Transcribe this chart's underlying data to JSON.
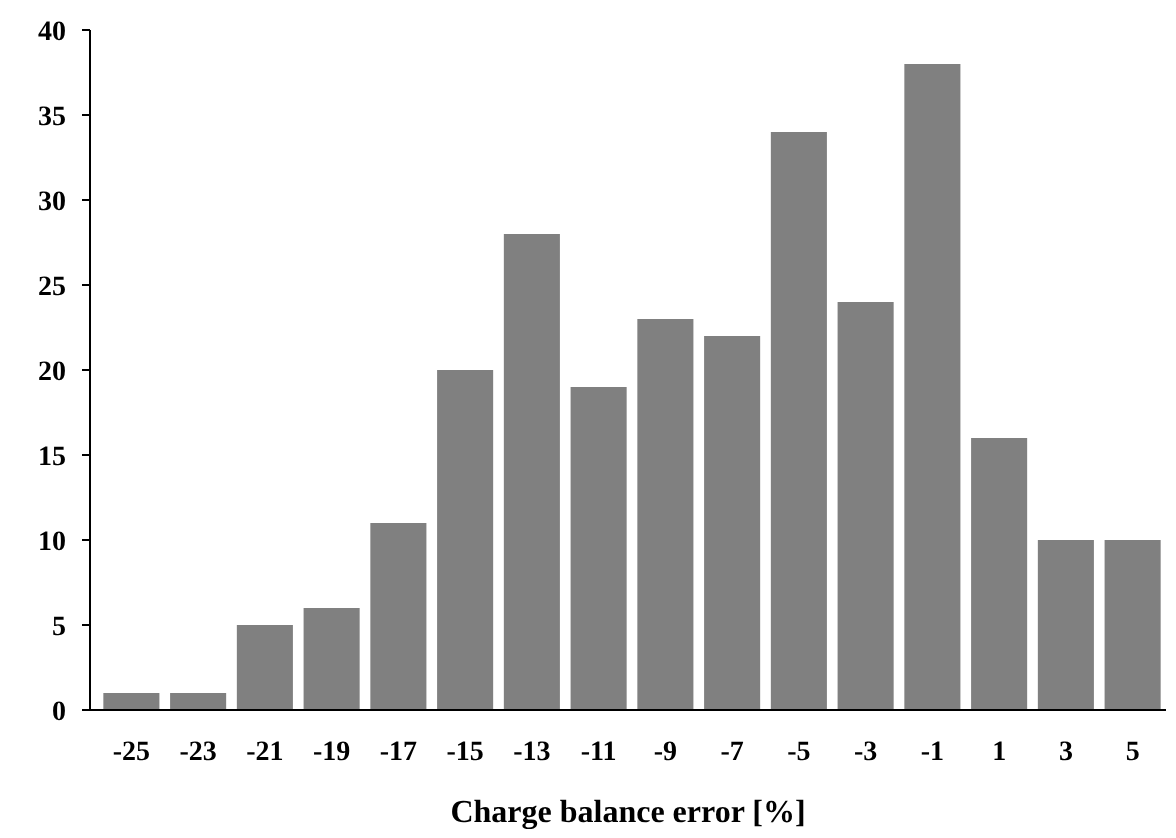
{
  "chart_data": {
    "type": "bar",
    "xlabel": "Charge balance error [%]",
    "categories": [
      "-25",
      "-23",
      "-21",
      "-19",
      "-17",
      "-15",
      "-13",
      "-11",
      "-9",
      "-7",
      "-5",
      "-3",
      "-1",
      "1",
      "3",
      "5"
    ],
    "values": [
      1,
      1,
      5,
      6,
      11,
      20,
      28,
      19,
      23,
      22,
      34,
      24,
      38,
      16,
      10,
      10
    ],
    "color": "#808080",
    "ylim": [
      0,
      40
    ],
    "yticks": [
      0,
      5,
      10,
      15,
      20,
      25,
      30,
      35,
      40
    ],
    "grid": false
  }
}
